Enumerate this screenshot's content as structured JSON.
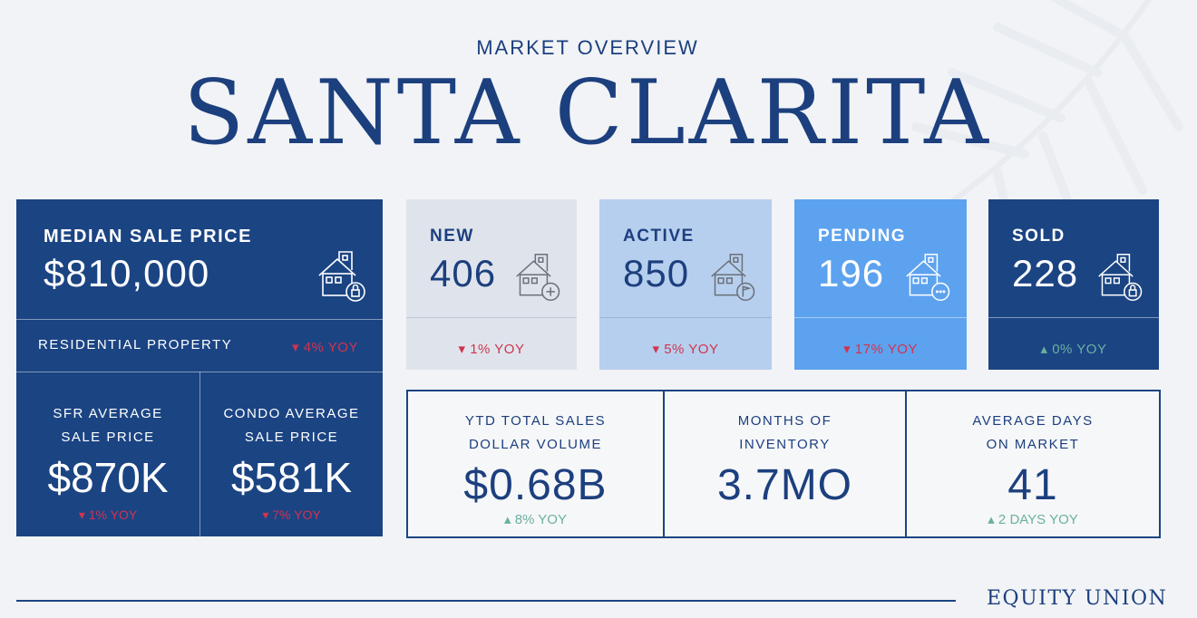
{
  "header": {
    "kicker": "MARKET OVERVIEW",
    "title": "SANTA CLARITA"
  },
  "median": {
    "label": "MEDIAN SALE PRICE",
    "value": "$810,000",
    "icon": "house-lock-icon",
    "residential_label": "RESIDENTIAL PROPERTY",
    "residential_yoy": "▾ 4% YOY",
    "sfr": {
      "label_line1": "SFR AVERAGE",
      "label_line2": "SALE PRICE",
      "value": "$870K",
      "yoy": "▾ 1% YOY"
    },
    "condo": {
      "label_line1": "CONDO AVERAGE",
      "label_line2": "SALE PRICE",
      "value": "$581K",
      "yoy": "▾ 7% YOY"
    }
  },
  "listings": [
    {
      "label": "NEW",
      "value": "406",
      "yoy": "▾ 1% YOY",
      "icon": "house-plus-icon",
      "bg": "#dfe4ec"
    },
    {
      "label": "ACTIVE",
      "value": "850",
      "yoy": "▾ 5% YOY",
      "icon": "house-flag-icon",
      "bg": "#b7cfee"
    },
    {
      "label": "PENDING",
      "value": "196",
      "yoy": "▾ 17% YOY",
      "icon": "house-dots-icon",
      "bg": "#5da2ef"
    },
    {
      "label": "SOLD",
      "value": "228",
      "yoy": "▴ 0% YOY",
      "icon": "house-lock-icon",
      "bg": "#1b4483"
    }
  ],
  "stats": [
    {
      "label_line1": "YTD TOTAL SALES",
      "label_line2": "DOLLAR VOLUME",
      "value": "$0.68B",
      "yoy": "▴ 8% YOY"
    },
    {
      "label_line1": "MONTHS OF",
      "label_line2": "INVENTORY",
      "value": "3.7MO",
      "yoy": ""
    },
    {
      "label_line1": "AVERAGE DAYS",
      "label_line2": "ON MARKET",
      "value": "41",
      "yoy": "▴ 2 DAYS YOY"
    }
  ],
  "footer": {
    "brand": "EQUITY UNION"
  },
  "colors": {
    "navy": "#1b4483",
    "down": "#d0344f",
    "up": "#6ab0a0"
  }
}
